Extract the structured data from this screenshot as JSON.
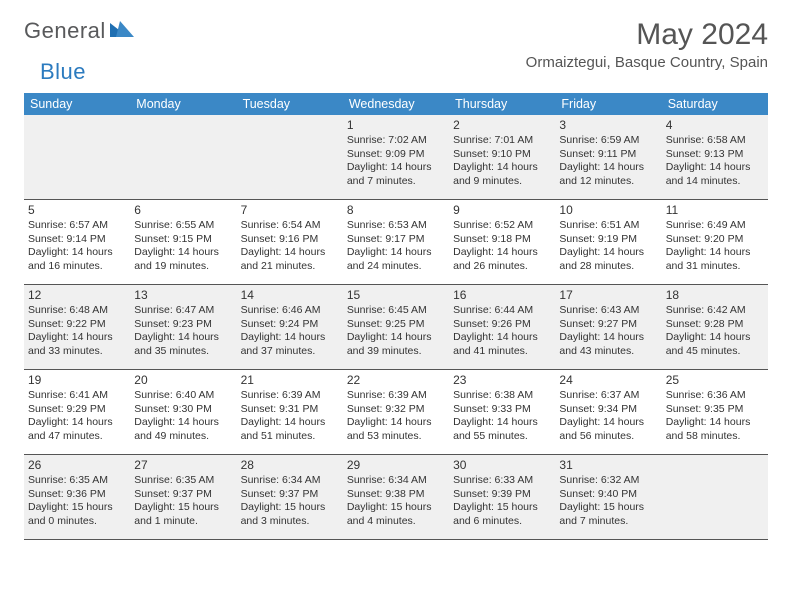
{
  "logo": {
    "text1": "General",
    "text2": "Blue"
  },
  "title": "May 2024",
  "location": "Ormaiztegui, Basque Country, Spain",
  "colors": {
    "header_bg": "#3b88c6",
    "header_text": "#ffffff",
    "shaded_bg": "#f0f0f0",
    "border": "#555555",
    "logo_gray": "#58595b",
    "logo_blue": "#2c7bbf",
    "title_color": "#555555"
  },
  "day_names": [
    "Sunday",
    "Monday",
    "Tuesday",
    "Wednesday",
    "Thursday",
    "Friday",
    "Saturday"
  ],
  "weeks": [
    [
      {
        "n": "",
        "sr": "",
        "ss": "",
        "dl": ""
      },
      {
        "n": "",
        "sr": "",
        "ss": "",
        "dl": ""
      },
      {
        "n": "",
        "sr": "",
        "ss": "",
        "dl": ""
      },
      {
        "n": "1",
        "sr": "Sunrise: 7:02 AM",
        "ss": "Sunset: 9:09 PM",
        "dl": "Daylight: 14 hours and 7 minutes."
      },
      {
        "n": "2",
        "sr": "Sunrise: 7:01 AM",
        "ss": "Sunset: 9:10 PM",
        "dl": "Daylight: 14 hours and 9 minutes."
      },
      {
        "n": "3",
        "sr": "Sunrise: 6:59 AM",
        "ss": "Sunset: 9:11 PM",
        "dl": "Daylight: 14 hours and 12 minutes."
      },
      {
        "n": "4",
        "sr": "Sunrise: 6:58 AM",
        "ss": "Sunset: 9:13 PM",
        "dl": "Daylight: 14 hours and 14 minutes."
      }
    ],
    [
      {
        "n": "5",
        "sr": "Sunrise: 6:57 AM",
        "ss": "Sunset: 9:14 PM",
        "dl": "Daylight: 14 hours and 16 minutes."
      },
      {
        "n": "6",
        "sr": "Sunrise: 6:55 AM",
        "ss": "Sunset: 9:15 PM",
        "dl": "Daylight: 14 hours and 19 minutes."
      },
      {
        "n": "7",
        "sr": "Sunrise: 6:54 AM",
        "ss": "Sunset: 9:16 PM",
        "dl": "Daylight: 14 hours and 21 minutes."
      },
      {
        "n": "8",
        "sr": "Sunrise: 6:53 AM",
        "ss": "Sunset: 9:17 PM",
        "dl": "Daylight: 14 hours and 24 minutes."
      },
      {
        "n": "9",
        "sr": "Sunrise: 6:52 AM",
        "ss": "Sunset: 9:18 PM",
        "dl": "Daylight: 14 hours and 26 minutes."
      },
      {
        "n": "10",
        "sr": "Sunrise: 6:51 AM",
        "ss": "Sunset: 9:19 PM",
        "dl": "Daylight: 14 hours and 28 minutes."
      },
      {
        "n": "11",
        "sr": "Sunrise: 6:49 AM",
        "ss": "Sunset: 9:20 PM",
        "dl": "Daylight: 14 hours and 31 minutes."
      }
    ],
    [
      {
        "n": "12",
        "sr": "Sunrise: 6:48 AM",
        "ss": "Sunset: 9:22 PM",
        "dl": "Daylight: 14 hours and 33 minutes."
      },
      {
        "n": "13",
        "sr": "Sunrise: 6:47 AM",
        "ss": "Sunset: 9:23 PM",
        "dl": "Daylight: 14 hours and 35 minutes."
      },
      {
        "n": "14",
        "sr": "Sunrise: 6:46 AM",
        "ss": "Sunset: 9:24 PM",
        "dl": "Daylight: 14 hours and 37 minutes."
      },
      {
        "n": "15",
        "sr": "Sunrise: 6:45 AM",
        "ss": "Sunset: 9:25 PM",
        "dl": "Daylight: 14 hours and 39 minutes."
      },
      {
        "n": "16",
        "sr": "Sunrise: 6:44 AM",
        "ss": "Sunset: 9:26 PM",
        "dl": "Daylight: 14 hours and 41 minutes."
      },
      {
        "n": "17",
        "sr": "Sunrise: 6:43 AM",
        "ss": "Sunset: 9:27 PM",
        "dl": "Daylight: 14 hours and 43 minutes."
      },
      {
        "n": "18",
        "sr": "Sunrise: 6:42 AM",
        "ss": "Sunset: 9:28 PM",
        "dl": "Daylight: 14 hours and 45 minutes."
      }
    ],
    [
      {
        "n": "19",
        "sr": "Sunrise: 6:41 AM",
        "ss": "Sunset: 9:29 PM",
        "dl": "Daylight: 14 hours and 47 minutes."
      },
      {
        "n": "20",
        "sr": "Sunrise: 6:40 AM",
        "ss": "Sunset: 9:30 PM",
        "dl": "Daylight: 14 hours and 49 minutes."
      },
      {
        "n": "21",
        "sr": "Sunrise: 6:39 AM",
        "ss": "Sunset: 9:31 PM",
        "dl": "Daylight: 14 hours and 51 minutes."
      },
      {
        "n": "22",
        "sr": "Sunrise: 6:39 AM",
        "ss": "Sunset: 9:32 PM",
        "dl": "Daylight: 14 hours and 53 minutes."
      },
      {
        "n": "23",
        "sr": "Sunrise: 6:38 AM",
        "ss": "Sunset: 9:33 PM",
        "dl": "Daylight: 14 hours and 55 minutes."
      },
      {
        "n": "24",
        "sr": "Sunrise: 6:37 AM",
        "ss": "Sunset: 9:34 PM",
        "dl": "Daylight: 14 hours and 56 minutes."
      },
      {
        "n": "25",
        "sr": "Sunrise: 6:36 AM",
        "ss": "Sunset: 9:35 PM",
        "dl": "Daylight: 14 hours and 58 minutes."
      }
    ],
    [
      {
        "n": "26",
        "sr": "Sunrise: 6:35 AM",
        "ss": "Sunset: 9:36 PM",
        "dl": "Daylight: 15 hours and 0 minutes."
      },
      {
        "n": "27",
        "sr": "Sunrise: 6:35 AM",
        "ss": "Sunset: 9:37 PM",
        "dl": "Daylight: 15 hours and 1 minute."
      },
      {
        "n": "28",
        "sr": "Sunrise: 6:34 AM",
        "ss": "Sunset: 9:37 PM",
        "dl": "Daylight: 15 hours and 3 minutes."
      },
      {
        "n": "29",
        "sr": "Sunrise: 6:34 AM",
        "ss": "Sunset: 9:38 PM",
        "dl": "Daylight: 15 hours and 4 minutes."
      },
      {
        "n": "30",
        "sr": "Sunrise: 6:33 AM",
        "ss": "Sunset: 9:39 PM",
        "dl": "Daylight: 15 hours and 6 minutes."
      },
      {
        "n": "31",
        "sr": "Sunrise: 6:32 AM",
        "ss": "Sunset: 9:40 PM",
        "dl": "Daylight: 15 hours and 7 minutes."
      },
      {
        "n": "",
        "sr": "",
        "ss": "",
        "dl": ""
      }
    ]
  ]
}
